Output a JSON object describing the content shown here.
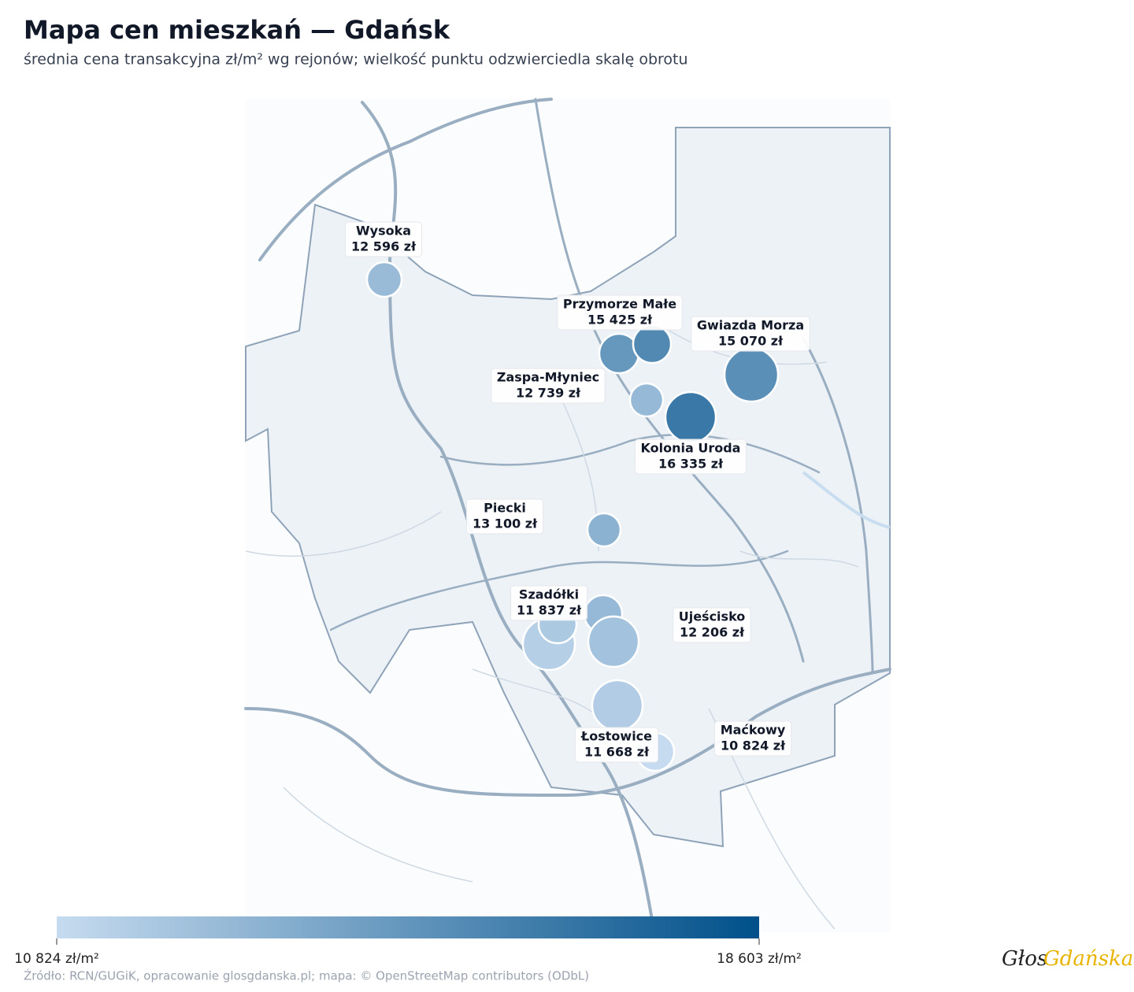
{
  "chart_data": {
    "type": "bubble-map",
    "title": "Mapa cen mieszkań — Gdańsk",
    "subtitle": "średnia cena transakcyjna zł/m² wg rejonów; wielkość punktu odzwierciedla skalę obrotu",
    "categories": [
      "Wysoka",
      "Przymorze Małe",
      "Gwiazda Morza",
      "Zaspa-Młyniec",
      "Kolonia Uroda",
      "Piecki",
      "Szadółki",
      "Ujeścisko",
      "Łostowice",
      "Maćkowy",
      null,
      null,
      null
    ],
    "values": [
      12596,
      15425,
      15070,
      12739,
      16335,
      13100,
      11837,
      12206,
      11668,
      10824,
      14600,
      12700,
      11500
    ],
    "value_labels": [
      "12 596 zł",
      "15 425 zł",
      "15 070 zł",
      "12 739 zł",
      "16 335 zł",
      "13 100 zł",
      "11 837 zł",
      "12 206 zł",
      "11 668 zł",
      "10 824 zł",
      null,
      null,
      null
    ],
    "colorbar": {
      "colors": [
        "#c6dbef",
        "#00508a"
      ],
      "range": [
        {
          "value": 10824,
          "label": "10 824 zł/m²"
        },
        {
          "value": 18603,
          "label": "18 603 zł/m²"
        }
      ]
    },
    "source": "Źródło: RCN/GUGiK, opracowanie glosgdanska.pl; mapa: © OpenStreetMap contributors (ODbL)",
    "logo": [
      "Głos",
      "Gdańska"
    ]
  }
}
